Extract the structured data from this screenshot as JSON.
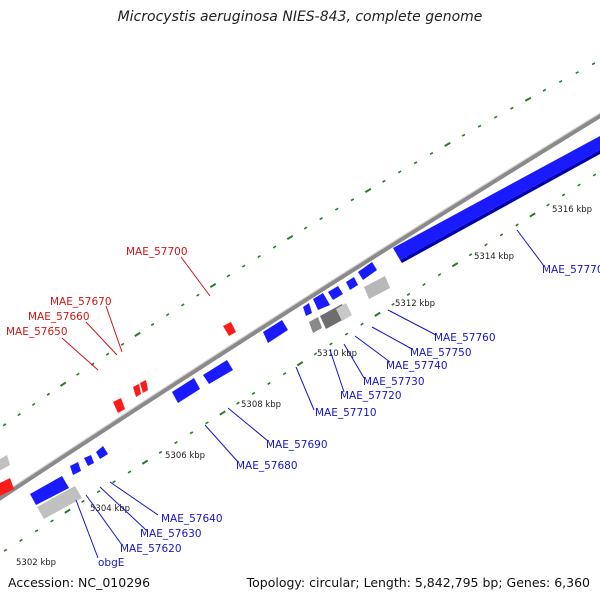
{
  "title": "Microcystis aeruginosa NIES-843, complete genome",
  "footer": {
    "accession": "Accession: NC_010296",
    "summary": "Topology: circular; Length: 5,842,795 bp; Genes: 6,360"
  },
  "colors": {
    "forward_gene": "#1a1aff",
    "reverse_gene": "#ff1a1a",
    "rna_gene": "#a0a0a0",
    "backbone": "#8a8a8a",
    "tick": "#2a7a2a",
    "forward_label": "#1515c8",
    "reverse_label": "#d01515"
  },
  "scale_labels": [
    "5302 kbp",
    "5304 kbp",
    "5306 kbp",
    "5308 kbp",
    "5310 kbp",
    "5312 kbp",
    "5314 kbp",
    "5316 kbp"
  ],
  "gene_labels": {
    "forward": [
      "obgE",
      "MAE_57620",
      "MAE_57630",
      "MAE_57640",
      "MAE_57680",
      "MAE_57690",
      "MAE_57710",
      "MAE_57720",
      "MAE_57730",
      "MAE_57740",
      "MAE_57750",
      "MAE_57760",
      "MAE_57770"
    ],
    "reverse": [
      "MAE_57650",
      "MAE_57660",
      "MAE_57670",
      "MAE_57700"
    ]
  }
}
